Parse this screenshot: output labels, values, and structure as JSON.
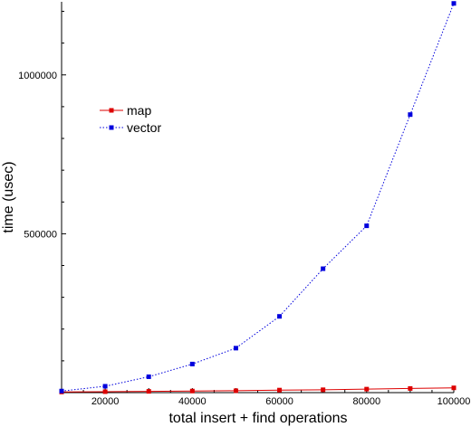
{
  "chart_data": {
    "type": "line",
    "xlabel": "total insert + find operations",
    "ylabel": "time (usec)",
    "xlim": [
      10000,
      100000
    ],
    "ylim": [
      0,
      1230000
    ],
    "x_ticks": [
      20000,
      40000,
      60000,
      80000,
      100000
    ],
    "x_tick_labels": [
      "20000",
      "40000",
      "60000",
      "80000",
      "100000"
    ],
    "y_ticks": [
      500000,
      1000000
    ],
    "y_tick_labels": [
      "500000",
      "1000000"
    ],
    "grid": false,
    "legend_position": "upper-left",
    "x": [
      10000,
      20000,
      30000,
      40000,
      50000,
      60000,
      70000,
      80000,
      90000,
      100000
    ],
    "series": [
      {
        "name": "map",
        "color": "#dd0000",
        "line_style": "solid",
        "values": [
          2000,
          3000,
          4000,
          5000,
          6000,
          8000,
          9000,
          11000,
          13000,
          15000
        ]
      },
      {
        "name": "vector",
        "color": "#0000dd",
        "line_style": "dotted",
        "values": [
          5000,
          20000,
          50000,
          90000,
          140000,
          240000,
          390000,
          525000,
          875000,
          1225000
        ]
      }
    ]
  }
}
